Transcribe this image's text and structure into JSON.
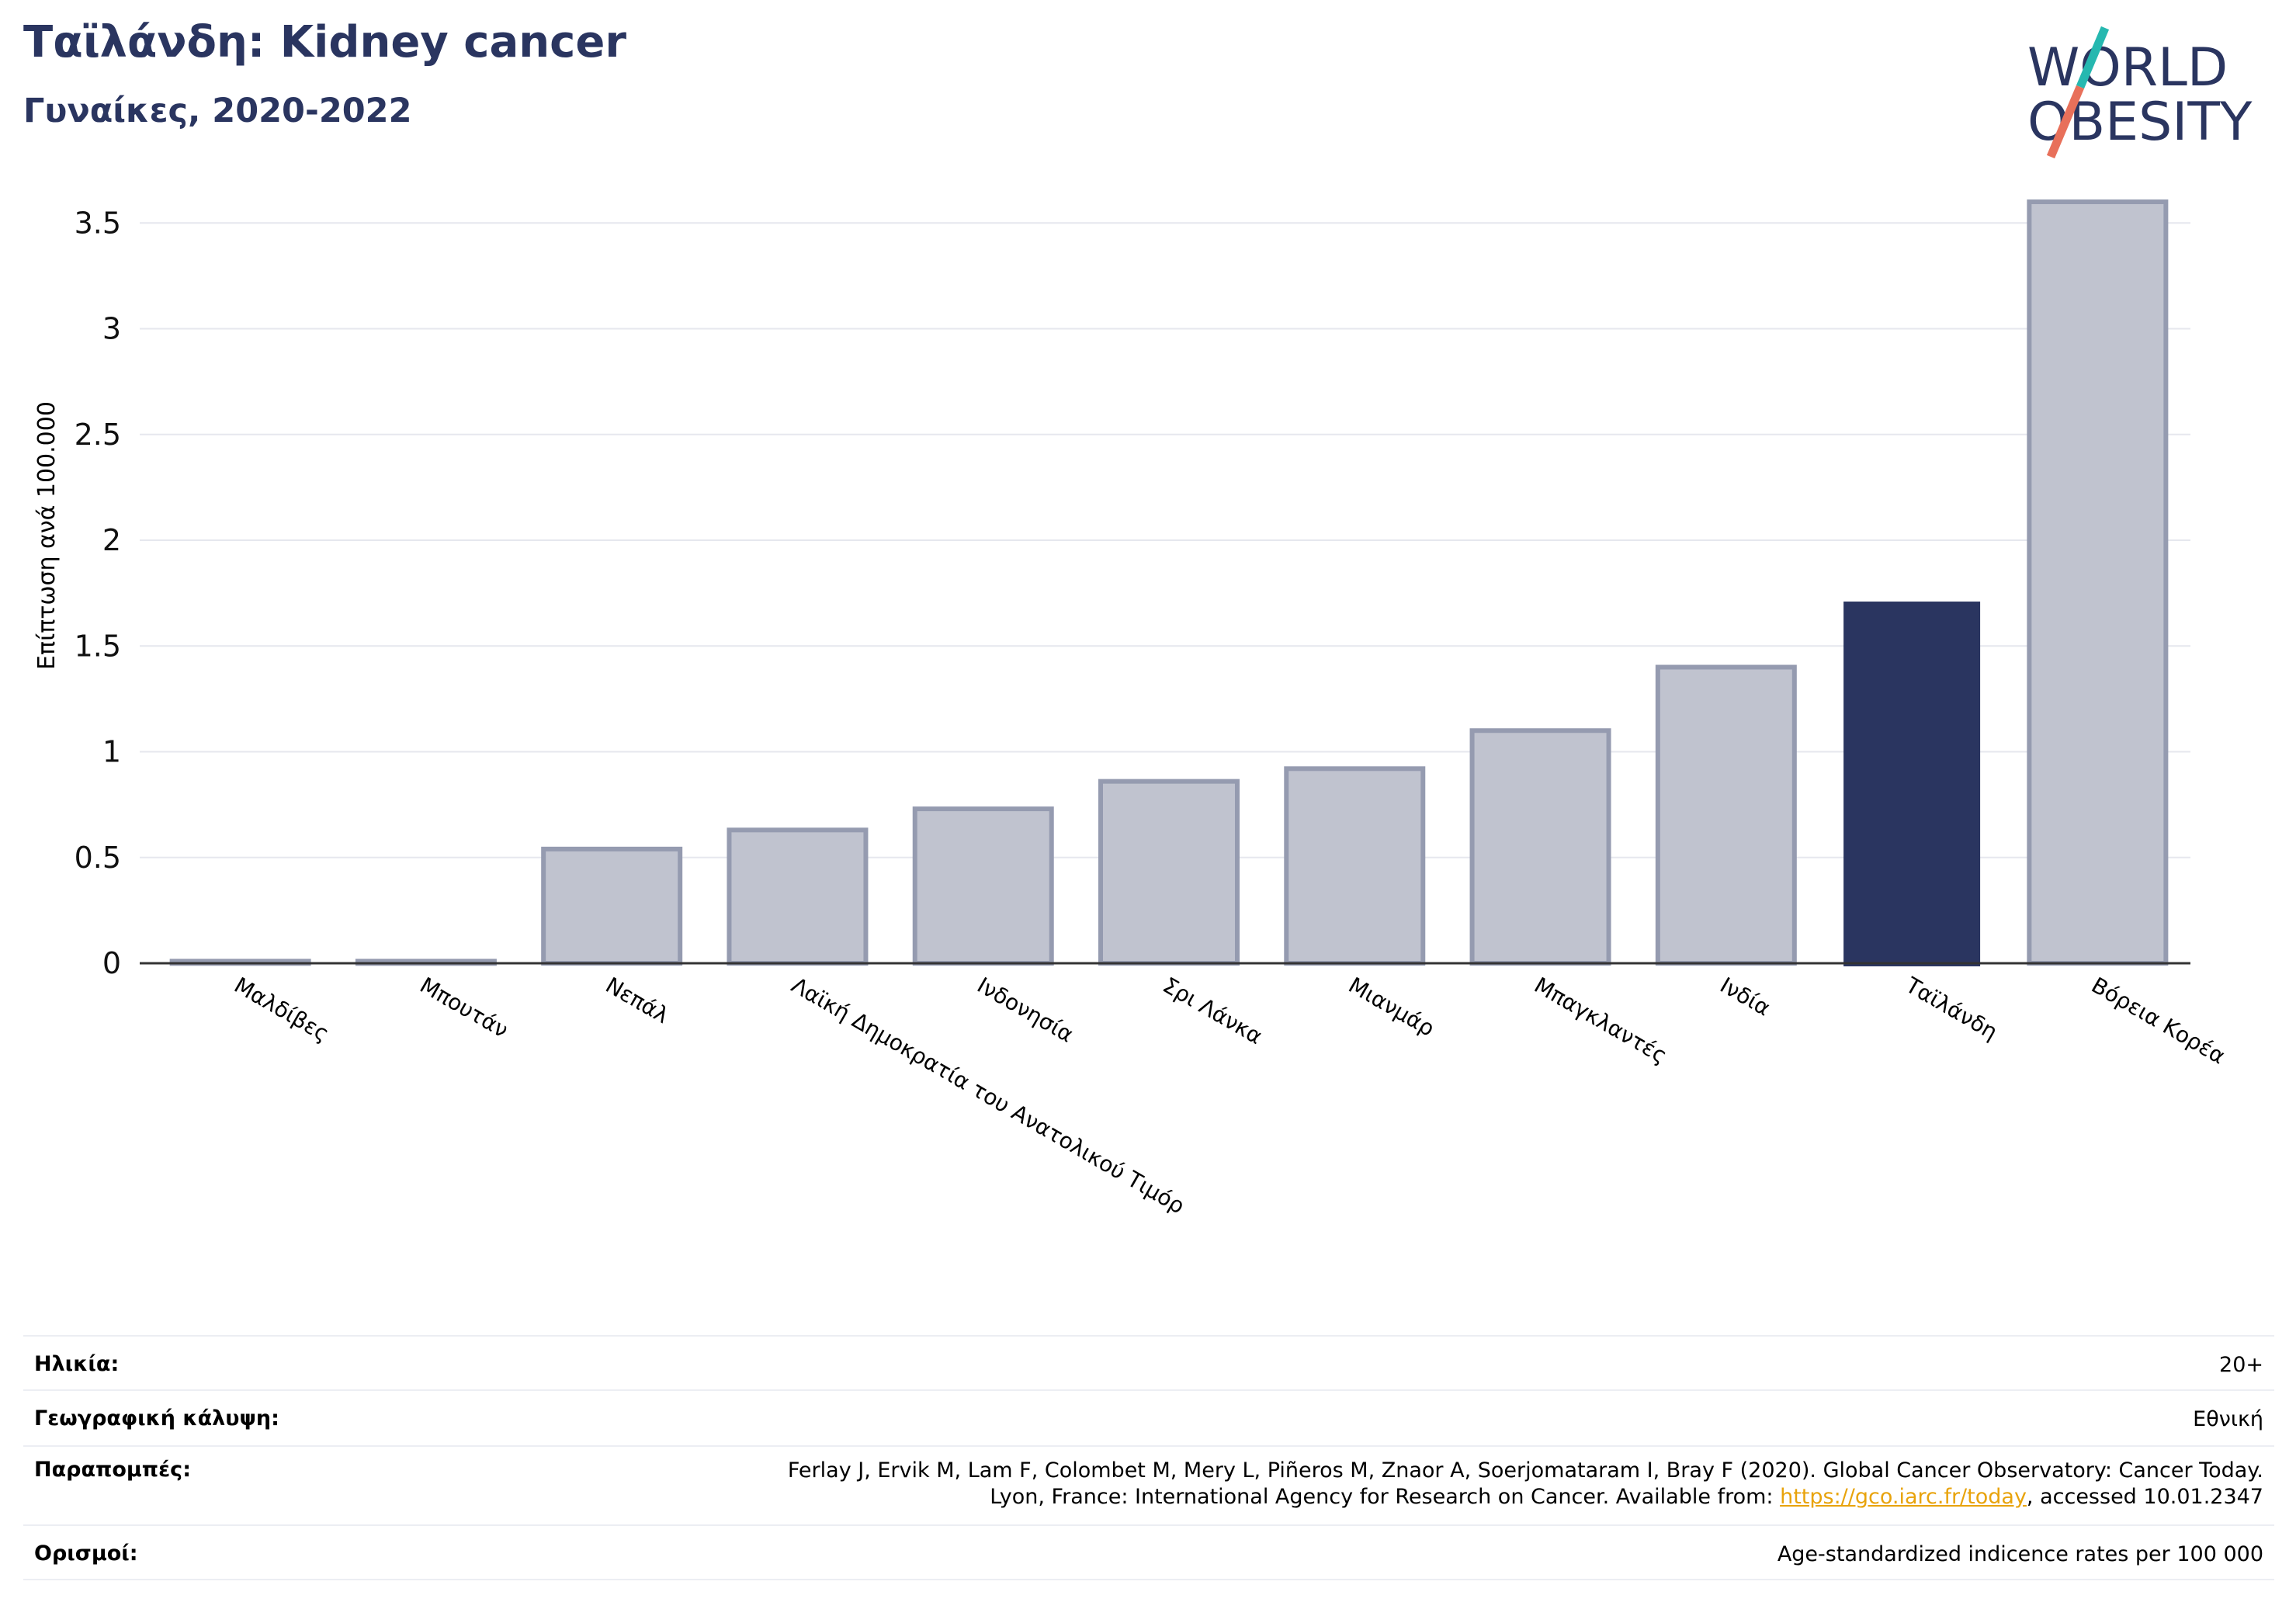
{
  "header": {
    "title": "Ταϊλάνδη: Kidney cancer",
    "subtitle": "Γυναίκες, 2020-2022"
  },
  "logo": {
    "line1": "WORLD",
    "line2": "OBESITY"
  },
  "colors": {
    "highlight": "#2a3560",
    "bar": "#c0c3cf",
    "bar_border": "#959bb0",
    "grid": "#e6e7ee",
    "link": "#e8a30b",
    "logo_teal": "#26b8b0",
    "logo_red": "#e8705a"
  },
  "chart_data": {
    "type": "bar",
    "ylabel": "Επίπτωση ανά 100.000",
    "ylim": [
      0,
      3.6
    ],
    "yticks": [
      0,
      0.5,
      1,
      1.5,
      2,
      2.5,
      3,
      3.5
    ],
    "ytick_labels": [
      "0",
      "0.5",
      "1",
      "1.5",
      "2",
      "2.5",
      "3",
      "3.5"
    ],
    "grid": true,
    "categories": [
      "Μαλδίβες",
      "Μπουτάν",
      "Νεπάλ",
      "Λαϊκή Δημοκρατία του Ανατολικού Τιμόρ",
      "Ινδονησία",
      "Σρι Λάνκα",
      "Μιανμάρ",
      "Μπαγκλαντές",
      "Ινδία",
      "Ταϊλάνδη",
      "Βόρεια Κορέα"
    ],
    "values": [
      0.01,
      0.01,
      0.54,
      0.63,
      0.73,
      0.86,
      0.92,
      1.1,
      1.4,
      1.71,
      3.6
    ],
    "highlight": "Ταϊλάνδη"
  },
  "info": [
    {
      "label": "Ηλικία:",
      "value": "20+"
    },
    {
      "label": "Γεωγραφική κάλυψη:",
      "value": "Εθνική"
    },
    {
      "label": "Παραπομπές:",
      "value_line1": "Ferlay J, Ervik M, Lam F, Colombet M, Mery L, Piñeros M, Znaor A, Soerjomataram I, Bray F (2020). Global Cancer Observatory: Cancer Today.",
      "value_line2_pre": "Lyon, France: International Agency for Research on Cancer. Available from: ",
      "link": "https://gco.iarc.fr/today",
      "value_line2_post": ", accessed 10.01.2347"
    },
    {
      "label": "Ορισμοί:",
      "value": "Age-standardized indicence rates per 100 000"
    }
  ]
}
